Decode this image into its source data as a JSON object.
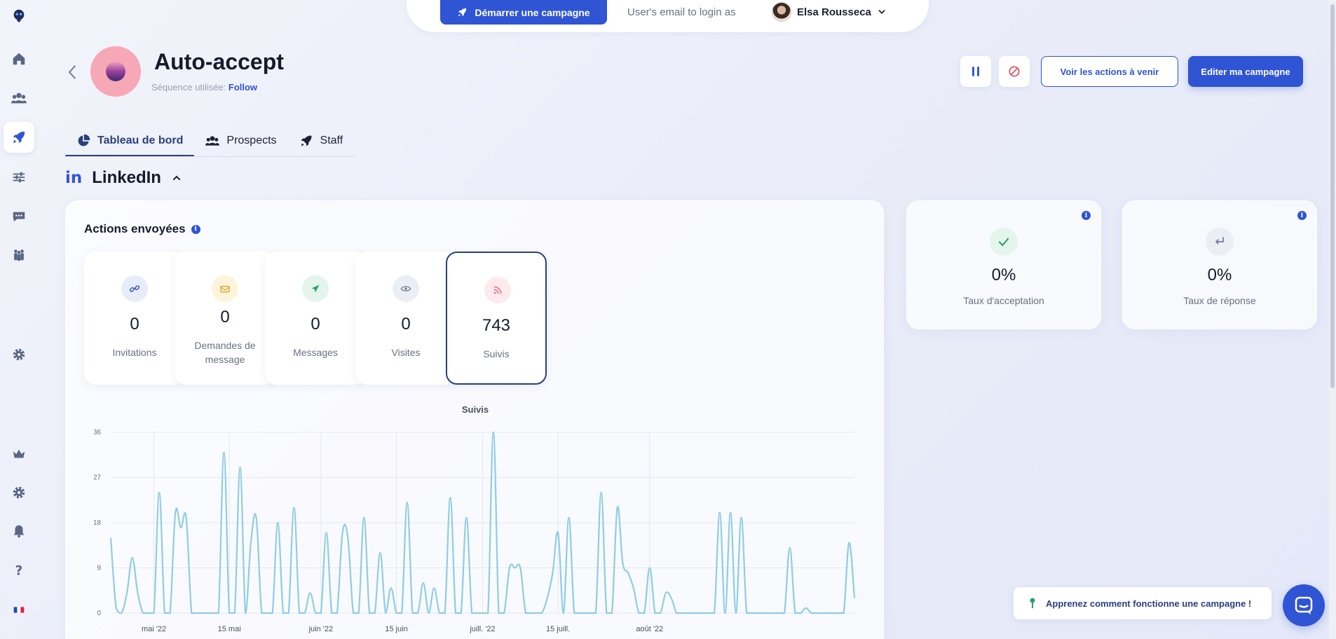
{
  "topbar": {
    "start_button": "Démarrer une campagne",
    "login_hint": "User's email to login as",
    "user_name": "Elsa Rousseca"
  },
  "sidebar": {
    "items": [
      {
        "icon": "logo-icon"
      },
      {
        "icon": "home-icon"
      },
      {
        "icon": "users-icon"
      },
      {
        "icon": "rocket-icon",
        "active": true
      },
      {
        "icon": "filters-icon"
      },
      {
        "icon": "chat-icon"
      },
      {
        "icon": "team-icon"
      },
      {
        "icon": "gear-icon"
      },
      {
        "icon": "crown-icon"
      },
      {
        "icon": "gear-icon"
      },
      {
        "icon": "bell-icon"
      },
      {
        "icon": "help-icon"
      },
      {
        "icon": "french-flag-icon"
      }
    ]
  },
  "header": {
    "title": "Auto-accept",
    "sequence_label": "Séquence utilisée:",
    "sequence_name": "Follow",
    "upcoming_button": "Voir les actions à venir",
    "edit_button": "Editer ma campagne"
  },
  "tabs": [
    {
      "label": "Tableau de bord",
      "icon": "pie-chart-icon",
      "active": true
    },
    {
      "label": "Prospects",
      "icon": "users-icon"
    },
    {
      "label": "Staff",
      "icon": "rocket-icon"
    }
  ],
  "section": {
    "badge": "in",
    "label": "LinkedIn"
  },
  "actions_card": {
    "title": "Actions envoyées",
    "stats": [
      {
        "label": "Invitations",
        "value": "0",
        "icon": "link-icon",
        "color": "#3d5ab8",
        "bg": "#e8ecf8"
      },
      {
        "label": "Demandes de message",
        "value": "0",
        "icon": "envelope-icon",
        "color": "#e0a21c",
        "bg": "#fdf4dc"
      },
      {
        "label": "Messages",
        "value": "0",
        "icon": "send-icon",
        "color": "#2aa067",
        "bg": "#e3f5ec"
      },
      {
        "label": "Visites",
        "value": "0",
        "icon": "eye-icon",
        "color": "#6c7a99",
        "bg": "#eceef5"
      },
      {
        "label": "Suivis",
        "value": "743",
        "icon": "rss-icon",
        "color": "#e46a7a",
        "bg": "#fdeaee",
        "selected": true
      }
    ]
  },
  "rates": [
    {
      "label": "Taux d'acceptation",
      "value": "0%",
      "icon": "check-icon",
      "color": "#2aa067",
      "bg": "#e3f5ec"
    },
    {
      "label": "Taux de réponse",
      "value": "0%",
      "icon": "reply-icon",
      "color": "#6c7a99",
      "bg": "#eceef5"
    }
  ],
  "chart_data": {
    "type": "line",
    "title": "Suivis",
    "xlabel": "",
    "ylabel": "",
    "ylim": [
      0,
      36
    ],
    "yticks": [
      "36",
      "27",
      "18",
      "9",
      "0"
    ],
    "xticks": [
      {
        "label": "mai '22",
        "index": 8
      },
      {
        "label": "15 mai",
        "index": 22
      },
      {
        "label": "juin '22",
        "index": 39
      },
      {
        "label": "15 juin",
        "index": 53
      },
      {
        "label": "juill. '22",
        "index": 69
      },
      {
        "label": "15 juill.",
        "index": 83
      },
      {
        "label": "août '22",
        "index": 100
      }
    ],
    "color": "#8fcde3",
    "grid": true,
    "values": [
      15,
      1,
      0,
      4,
      11,
      4,
      0,
      0,
      0,
      24,
      0,
      0,
      20,
      17,
      19,
      0,
      0,
      0,
      0,
      0,
      0,
      32,
      0,
      0,
      29,
      0,
      14,
      19,
      0,
      0,
      0,
      18,
      0,
      0,
      21,
      0,
      0,
      4,
      0,
      0,
      16,
      0,
      0,
      16,
      15,
      0,
      0,
      19,
      0,
      0,
      12,
      0,
      5,
      0,
      0,
      22,
      0,
      0,
      6,
      0,
      5,
      0,
      0,
      23,
      0,
      0,
      19,
      0,
      0,
      0,
      0,
      36,
      0,
      0,
      9,
      9,
      9,
      0,
      0,
      0,
      0,
      3,
      8,
      16,
      0,
      19,
      0,
      0,
      0,
      0,
      0,
      24,
      0,
      0,
      21,
      10,
      8,
      5,
      0,
      0,
      9,
      0,
      0,
      4,
      3,
      0,
      0,
      0,
      0,
      0,
      0,
      0,
      0,
      20,
      0,
      20,
      0,
      19,
      0,
      0,
      0,
      0,
      0,
      0,
      0,
      0,
      13,
      0,
      0,
      1,
      0,
      0,
      0,
      0,
      0,
      0,
      0,
      14,
      3
    ]
  },
  "learn_widget": {
    "label": "Apprenez comment fonctionne une campagne !"
  }
}
